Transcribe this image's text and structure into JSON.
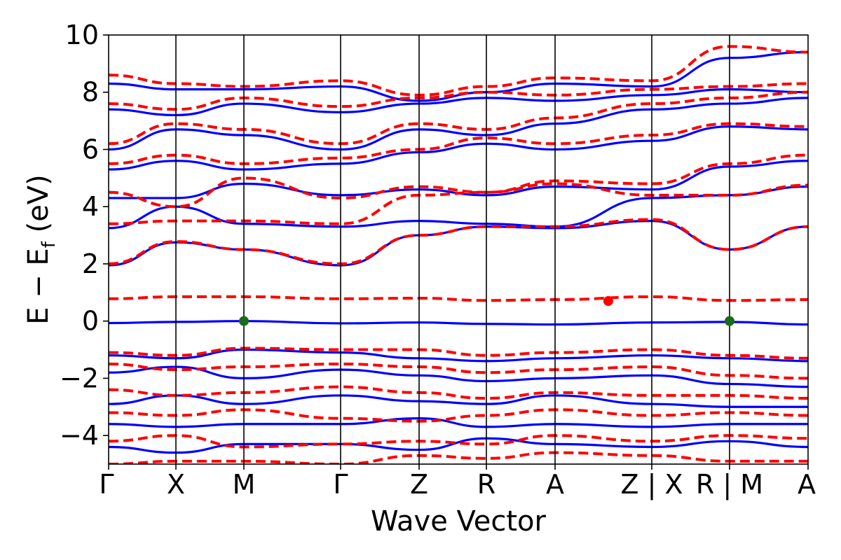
{
  "chart_data": {
    "type": "line",
    "title": "",
    "xlabel": "Wave Vector",
    "ylabel": "E − E",
    "ylabel_sub": "f",
    "ylabel_unit": " (eV)",
    "ylim": [
      -5,
      10
    ],
    "y_ticks": [
      -4,
      -2,
      0,
      2,
      4,
      6,
      8,
      10
    ],
    "y_tick_labels": [
      "−4",
      "−2",
      "0",
      "2",
      "4",
      "6",
      "8",
      "10"
    ],
    "x_tick_labels": [
      "Γ",
      "X",
      "M",
      "Γ",
      "Z",
      "R",
      "A",
      "Z | X",
      "R | M",
      "A"
    ],
    "path_separators": [
      7,
      8
    ],
    "grid": false,
    "colors": {
      "solid_series": "#0000ff",
      "dashed_series": "#ff0000",
      "vbm_marker": "#1a6b1a",
      "cbm_marker": "#ff0000"
    },
    "series": [
      {
        "style": "solid",
        "color": "#0000ff",
        "bands": [
          [
            -0.07,
            -0.03,
            0.0,
            -0.08,
            -0.05,
            -0.1,
            -0.12,
            -0.05,
            -0.03,
            -0.12
          ],
          [
            1.95,
            2.75,
            2.5,
            1.95,
            3.0,
            3.3,
            3.25,
            3.5,
            2.5,
            3.3
          ],
          [
            3.25,
            4.0,
            3.4,
            3.3,
            3.5,
            3.4,
            3.3,
            4.3,
            4.4,
            4.7
          ],
          [
            4.3,
            4.3,
            4.8,
            4.4,
            4.6,
            4.4,
            4.7,
            4.6,
            5.4,
            5.6
          ],
          [
            5.3,
            5.6,
            5.3,
            5.5,
            5.9,
            6.2,
            6.0,
            6.3,
            6.8,
            6.7
          ],
          [
            6.0,
            6.7,
            6.5,
            6.0,
            6.7,
            6.5,
            6.9,
            7.4,
            7.6,
            7.8
          ],
          [
            7.4,
            7.2,
            7.6,
            7.3,
            7.6,
            7.8,
            7.7,
            7.9,
            8.1,
            8.0
          ],
          [
            8.3,
            8.1,
            8.1,
            8.2,
            7.7,
            8.0,
            8.3,
            8.2,
            9.2,
            9.4
          ],
          [
            -1.2,
            -1.3,
            -1.0,
            -1.1,
            -1.3,
            -1.4,
            -1.3,
            -1.2,
            -1.3,
            -1.4
          ],
          [
            -1.8,
            -1.6,
            -2.0,
            -1.7,
            -1.9,
            -2.1,
            -2.0,
            -1.9,
            -2.2,
            -2.3
          ],
          [
            -2.9,
            -2.6,
            -2.9,
            -2.6,
            -2.8,
            -2.9,
            -2.6,
            -2.9,
            -3.0,
            -3.0
          ],
          [
            -3.6,
            -3.7,
            -3.6,
            -3.6,
            -3.4,
            -3.7,
            -3.6,
            -3.7,
            -3.6,
            -3.6
          ],
          [
            -4.4,
            -4.6,
            -4.3,
            -4.3,
            -4.5,
            -4.1,
            -4.3,
            -4.4,
            -4.2,
            -4.4
          ]
        ]
      },
      {
        "style": "dashed",
        "color": "#ff0000",
        "bands": [
          [
            0.78,
            0.85,
            0.85,
            0.78,
            0.8,
            0.72,
            0.75,
            0.85,
            0.72,
            0.75
          ],
          [
            2.0,
            2.78,
            2.5,
            2.0,
            3.0,
            3.3,
            3.3,
            3.55,
            2.5,
            3.3
          ],
          [
            3.4,
            3.5,
            3.5,
            3.4,
            4.4,
            4.5,
            4.8,
            4.4,
            4.4,
            4.75
          ],
          [
            4.5,
            4.0,
            5.0,
            4.3,
            4.7,
            4.5,
            4.9,
            4.8,
            5.5,
            5.8
          ],
          [
            5.5,
            5.8,
            5.5,
            5.7,
            6.0,
            6.4,
            6.2,
            6.5,
            6.9,
            6.8
          ],
          [
            6.2,
            6.9,
            6.7,
            6.2,
            6.9,
            6.7,
            7.1,
            7.6,
            7.8,
            8.0
          ],
          [
            7.6,
            7.4,
            7.8,
            7.5,
            7.8,
            8.0,
            7.9,
            8.1,
            8.2,
            8.3
          ],
          [
            8.6,
            8.3,
            8.2,
            8.4,
            7.9,
            8.2,
            8.5,
            8.4,
            9.6,
            9.4
          ],
          [
            -1.1,
            -1.2,
            -0.95,
            -1.0,
            -1.0,
            -1.2,
            -1.1,
            -1.0,
            -1.2,
            -1.3
          ],
          [
            -1.5,
            -1.7,
            -1.6,
            -1.5,
            -1.6,
            -1.8,
            -1.7,
            -1.6,
            -1.9,
            -2.0
          ],
          [
            -2.4,
            -2.6,
            -2.5,
            -2.3,
            -2.5,
            -2.7,
            -2.5,
            -2.6,
            -2.6,
            -2.7
          ],
          [
            -3.2,
            -3.3,
            -3.1,
            -3.4,
            -3.5,
            -3.3,
            -3.1,
            -3.3,
            -3.2,
            -3.3
          ],
          [
            -4.2,
            -4.0,
            -4.4,
            -4.3,
            -4.2,
            -4.3,
            -4.0,
            -4.2,
            -4.0,
            -4.1
          ],
          [
            -5.0,
            -4.9,
            -4.9,
            -5.0,
            -4.7,
            -4.8,
            -4.6,
            -4.7,
            -4.9,
            -4.9
          ]
        ]
      }
    ],
    "markers": [
      {
        "name": "vbm",
        "color": "#1a6b1a",
        "x_index": 2,
        "y": 0.0
      },
      {
        "name": "cbm",
        "color": "#ff0000",
        "x_index": 6.55,
        "y": 0.7
      },
      {
        "name": "vbm",
        "color": "#1a6b1a",
        "x_index": 8,
        "y": 0.0
      }
    ]
  }
}
